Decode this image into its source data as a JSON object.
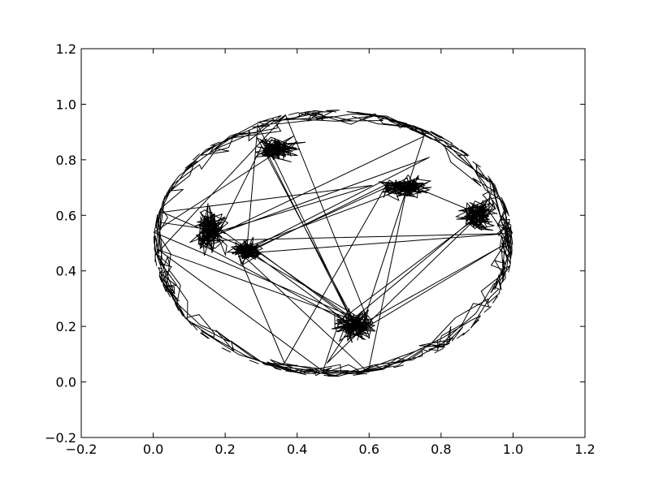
{
  "chart_data": {
    "type": "line",
    "title": "",
    "xlabel": "",
    "ylabel": "",
    "xlim": [
      -0.2,
      1.2
    ],
    "ylim": [
      -0.2,
      1.2
    ],
    "grid": false,
    "x_ticks": [
      -0.2,
      0.0,
      0.2,
      0.4,
      0.6,
      0.8,
      1.0,
      1.2
    ],
    "y_ticks": [
      -0.2,
      0.0,
      0.2,
      0.4,
      0.6,
      0.8,
      1.0,
      1.2
    ],
    "x_tick_labels": [
      "−0.2",
      "0.0",
      "0.2",
      "0.4",
      "0.6",
      "0.8",
      "1.0",
      "1.2"
    ],
    "y_tick_labels": [
      "−0.2",
      "0.0",
      "0.2",
      "0.4",
      "0.6",
      "0.8",
      "1.0",
      "1.2"
    ],
    "line_color": "#000000",
    "boundary": {
      "center": [
        0.5,
        0.5
      ],
      "radius_x": 0.5,
      "radius_y": 0.48
    },
    "clusters": [
      {
        "center": [
          0.34,
          0.84
        ],
        "spread": [
          0.09,
          0.06
        ]
      },
      {
        "center": [
          0.16,
          0.55
        ],
        "spread": [
          0.06,
          0.12
        ]
      },
      {
        "center": [
          0.26,
          0.47
        ],
        "spread": [
          0.06,
          0.05
        ]
      },
      {
        "center": [
          0.56,
          0.2
        ],
        "spread": [
          0.08,
          0.08
        ]
      },
      {
        "center": [
          0.7,
          0.7
        ],
        "spread": [
          0.1,
          0.06
        ]
      },
      {
        "center": [
          0.9,
          0.6
        ],
        "spread": [
          0.07,
          0.08
        ]
      }
    ]
  }
}
